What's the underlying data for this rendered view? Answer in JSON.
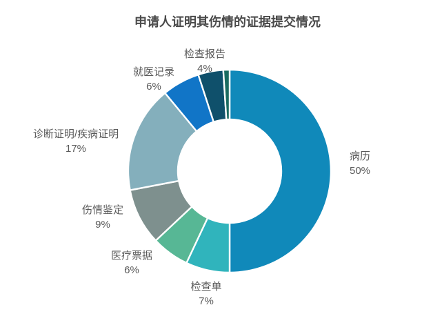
{
  "title": "申请人证明其伤情的证据提交情况",
  "colors": {
    "background": "#ffffff",
    "title_text": "#4a4a4a",
    "label_text": "#595959",
    "segment_gap": "#ffffff"
  },
  "chart_data": {
    "type": "pie",
    "subtype": "donut",
    "title": "申请人证明其伤情的证据提交情况",
    "unit": "%",
    "direction": "clockwise",
    "start_angle_deg": 0,
    "legend_position": "none",
    "data_labels": "category-name-and-percent-outside",
    "segments": [
      {
        "label": "病历",
        "value": 50,
        "color": "#1089ba",
        "data_label": "病历 50%"
      },
      {
        "label": "检查单",
        "value": 7,
        "color": "#30b4bc",
        "data_label": "检查单 7%"
      },
      {
        "label": "医疗票据",
        "value": 6,
        "color": "#57b795",
        "data_label": "医疗票据 6%"
      },
      {
        "label": "伤情鉴定",
        "value": 9,
        "color": "#7e908e",
        "data_label": "伤情鉴定 9%"
      },
      {
        "label": "诊断证明/疾病证明",
        "value": 17,
        "color": "#84afbc",
        "data_label": "诊断证明/疾病证明 17%"
      },
      {
        "label": "就医记录",
        "value": 6,
        "color": "#1175c7",
        "data_label": "就医记录 6%"
      },
      {
        "label": "检查报告",
        "value": 4,
        "color": "#0f506b",
        "data_label": "检查报告 4%"
      },
      {
        "label": "",
        "value": 1,
        "color": "#1a6b60",
        "data_label": ""
      }
    ]
  }
}
